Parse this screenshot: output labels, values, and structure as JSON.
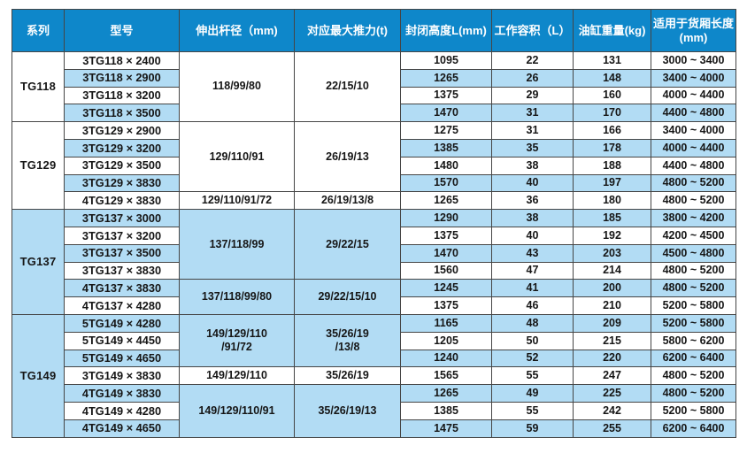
{
  "colors": {
    "header_bg": "#0e87ca",
    "row_alt_bg": "#b2dcf4",
    "row_bg": "#ffffff",
    "border": "#454545",
    "header_text": "#ffffff",
    "body_text": "#161616"
  },
  "table": {
    "headers": [
      "系列",
      "型号",
      "伸出杆径（mm)",
      "对应最大推力(t)",
      "封闭高度L(mm)",
      "工作容积（L）",
      "油缸重量(kg)",
      "适用于货厢长度\n(mm)"
    ],
    "sections": [
      {
        "series": "TG118",
        "groups": [
          {
            "rod": "118/99/80",
            "thrust": "22/15/10",
            "rows": [
              {
                "model": "3TG118 × 2400",
                "height": "1095",
                "volume": "22",
                "weight": "131",
                "range": "3000 ~ 3400"
              },
              {
                "model": "3TG118 × 2900",
                "height": "1265",
                "volume": "26",
                "weight": "148",
                "range": "3400 ~ 4000"
              },
              {
                "model": "3TG118 × 3200",
                "height": "1375",
                "volume": "29",
                "weight": "160",
                "range": "4000 ~ 4400"
              },
              {
                "model": "3TG118 × 3500",
                "height": "1470",
                "volume": "31",
                "weight": "170",
                "range": "4400 ~ 4800"
              }
            ]
          }
        ]
      },
      {
        "series": "TG129",
        "groups": [
          {
            "rod": "129/110/91",
            "thrust": "26/19/13",
            "rows": [
              {
                "model": "3TG129 × 2900",
                "height": "1275",
                "volume": "31",
                "weight": "166",
                "range": "3400 ~ 4000"
              },
              {
                "model": "3TG129 × 3200",
                "height": "1385",
                "volume": "35",
                "weight": "178",
                "range": "4000 ~ 4400"
              },
              {
                "model": "3TG129 × 3500",
                "height": "1480",
                "volume": "38",
                "weight": "188",
                "range": "4400 ~ 4800"
              },
              {
                "model": "3TG129 × 3830",
                "height": "1570",
                "volume": "40",
                "weight": "197",
                "range": "4800 ~ 5200"
              }
            ]
          },
          {
            "rod": "129/110/91/72",
            "thrust": "26/19/13/8",
            "rows": [
              {
                "model": "4TG129 × 3830",
                "height": "1265",
                "volume": "36",
                "weight": "180",
                "range": "4800 ~ 5200"
              }
            ]
          }
        ]
      },
      {
        "series": "TG137",
        "groups": [
          {
            "rod": "137/118/99",
            "thrust": "29/22/15",
            "rows": [
              {
                "model": "3TG137 × 3000",
                "height": "1290",
                "volume": "38",
                "weight": "185",
                "range": "3800 ~ 4200"
              },
              {
                "model": "3TG137 × 3200",
                "height": "1375",
                "volume": "40",
                "weight": "192",
                "range": "4200 ~ 4500"
              },
              {
                "model": "3TG137 × 3500",
                "height": "1470",
                "volume": "43",
                "weight": "203",
                "range": "4500 ~ 4800"
              },
              {
                "model": "3TG137 × 3830",
                "height": "1560",
                "volume": "47",
                "weight": "214",
                "range": "4800 ~ 5200"
              }
            ]
          },
          {
            "rod": "137/118/99/80",
            "thrust": "29/22/15/10",
            "rows": [
              {
                "model": "4TG137 × 3830",
                "height": "1245",
                "volume": "41",
                "weight": "200",
                "range": "4800 ~ 5200"
              },
              {
                "model": "4TG137 × 4280",
                "height": "1375",
                "volume": "46",
                "weight": "210",
                "range": "5200 ~ 5800"
              }
            ]
          }
        ]
      },
      {
        "series": "TG149",
        "groups": [
          {
            "rod": "149/129/110\n/91/72",
            "thrust": "35/26/19\n/13/8",
            "rows": [
              {
                "model": "5TG149 × 4280",
                "height": "1165",
                "volume": "48",
                "weight": "209",
                "range": "5200 ~ 5800"
              },
              {
                "model": "5TG149 × 4450",
                "height": "1205",
                "volume": "50",
                "weight": "215",
                "range": "5800 ~ 6200"
              },
              {
                "model": "5TG149 × 4650",
                "height": "1240",
                "volume": "52",
                "weight": "220",
                "range": "6200 ~ 6400"
              }
            ]
          },
          {
            "rod": "149/129/110",
            "thrust": "35/26/19",
            "rows": [
              {
                "model": "3TG149 × 3830",
                "height": "1565",
                "volume": "55",
                "weight": "247",
                "range": "4800 ~ 5200"
              }
            ]
          },
          {
            "rod": "149/129/110/91",
            "thrust": "35/26/19/13",
            "rows": [
              {
                "model": "4TG149 × 3830",
                "height": "1265",
                "volume": "49",
                "weight": "225",
                "range": "4800 ~ 5200"
              },
              {
                "model": "4TG149 × 4280",
                "height": "1385",
                "volume": "55",
                "weight": "242",
                "range": "5200 ~ 5800"
              },
              {
                "model": "4TG149 × 4650",
                "height": "1475",
                "volume": "59",
                "weight": "255",
                "range": "6200 ~ 6400"
              }
            ]
          }
        ]
      }
    ]
  },
  "chart_data": {
    "type": "table",
    "title": "",
    "columns": [
      "系列",
      "型号",
      "伸出杆径（mm)",
      "对应最大推力(t)",
      "封闭高度L(mm)",
      "工作容积（L）",
      "油缸重量(kg)",
      "适用于货厢长度(mm)"
    ],
    "rows": [
      [
        "TG118",
        "3TG118 × 2400",
        "118/99/80",
        "22/15/10",
        "1095",
        "22",
        "131",
        "3000 ~ 3400"
      ],
      [
        "TG118",
        "3TG118 × 2900",
        "118/99/80",
        "22/15/10",
        "1265",
        "26",
        "148",
        "3400 ~ 4000"
      ],
      [
        "TG118",
        "3TG118 × 3200",
        "118/99/80",
        "22/15/10",
        "1375",
        "29",
        "160",
        "4000 ~ 4400"
      ],
      [
        "TG118",
        "3TG118 × 3500",
        "118/99/80",
        "22/15/10",
        "1470",
        "31",
        "170",
        "4400 ~ 4800"
      ],
      [
        "TG129",
        "3TG129 × 2900",
        "129/110/91",
        "26/19/13",
        "1275",
        "31",
        "166",
        "3400 ~ 4000"
      ],
      [
        "TG129",
        "3TG129 × 3200",
        "129/110/91",
        "26/19/13",
        "1385",
        "35",
        "178",
        "4000 ~ 4400"
      ],
      [
        "TG129",
        "3TG129 × 3500",
        "129/110/91",
        "26/19/13",
        "1480",
        "38",
        "188",
        "4400 ~ 4800"
      ],
      [
        "TG129",
        "3TG129 × 3830",
        "129/110/91",
        "26/19/13",
        "1570",
        "40",
        "197",
        "4800 ~ 5200"
      ],
      [
        "TG129",
        "4TG129 × 3830",
        "129/110/91/72",
        "26/19/13/8",
        "1265",
        "36",
        "180",
        "4800 ~ 5200"
      ],
      [
        "TG137",
        "3TG137 × 3000",
        "137/118/99",
        "29/22/15",
        "1290",
        "38",
        "185",
        "3800 ~ 4200"
      ],
      [
        "TG137",
        "3TG137 × 3200",
        "137/118/99",
        "29/22/15",
        "1375",
        "40",
        "192",
        "4200 ~ 4500"
      ],
      [
        "TG137",
        "3TG137 × 3500",
        "137/118/99",
        "29/22/15",
        "1470",
        "43",
        "203",
        "4500 ~ 4800"
      ],
      [
        "TG137",
        "3TG137 × 3830",
        "137/118/99",
        "29/22/15",
        "1560",
        "47",
        "214",
        "4800 ~ 5200"
      ],
      [
        "TG137",
        "4TG137 × 3830",
        "137/118/99/80",
        "29/22/15/10",
        "1245",
        "41",
        "200",
        "4800 ~ 5200"
      ],
      [
        "TG137",
        "4TG137 × 4280",
        "137/118/99/80",
        "29/22/15/10",
        "1375",
        "46",
        "210",
        "5200 ~ 5800"
      ],
      [
        "TG149",
        "5TG149 × 4280",
        "149/129/110/91/72",
        "35/26/19/13/8",
        "1165",
        "48",
        "209",
        "5200 ~ 5800"
      ],
      [
        "TG149",
        "5TG149 × 4450",
        "149/129/110/91/72",
        "35/26/19/13/8",
        "1205",
        "50",
        "215",
        "5800 ~ 6200"
      ],
      [
        "TG149",
        "5TG149 × 4650",
        "149/129/110/91/72",
        "35/26/19/13/8",
        "1240",
        "52",
        "220",
        "6200 ~ 6400"
      ],
      [
        "TG149",
        "3TG149 × 3830",
        "149/129/110",
        "35/26/19",
        "1565",
        "55",
        "247",
        "4800 ~ 5200"
      ],
      [
        "TG149",
        "4TG149 × 3830",
        "149/129/110/91",
        "35/26/19/13",
        "1265",
        "49",
        "225",
        "4800 ~ 5200"
      ],
      [
        "TG149",
        "4TG149 × 4280",
        "149/129/110/91",
        "35/26/19/13",
        "1385",
        "55",
        "242",
        "5200 ~ 5800"
      ],
      [
        "TG149",
        "4TG149 × 4650",
        "149/129/110/91",
        "35/26/19/13",
        "1475",
        "59",
        "255",
        "6200 ~ 6400"
      ]
    ]
  }
}
